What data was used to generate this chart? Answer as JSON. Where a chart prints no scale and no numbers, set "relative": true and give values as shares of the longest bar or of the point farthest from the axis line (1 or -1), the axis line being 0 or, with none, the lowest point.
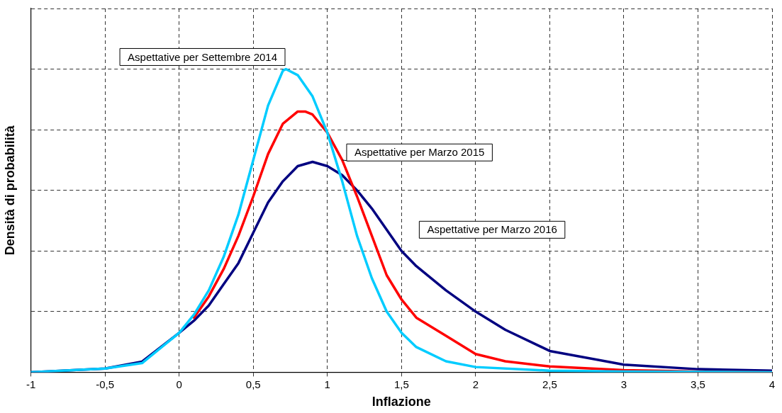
{
  "chart_data": {
    "type": "line",
    "xlabel": "Inflazione",
    "ylabel": "Densità di probabilità",
    "relative": true,
    "grid": true,
    "legend": false,
    "marker": "none",
    "line_style": "solid",
    "xlim": [
      -1,
      4
    ],
    "xticks": [
      -1,
      {
        "value": -0.5,
        "label": "-0,5"
      },
      0,
      {
        "value": 0.5,
        "label": "0,5"
      },
      1,
      {
        "value": 1.5,
        "label": "1,5"
      },
      2,
      {
        "value": 2.5,
        "label": "2,5"
      },
      3,
      {
        "value": 3.5,
        "label": "3,5"
      },
      4
    ],
    "series": [
      {
        "name": "Aspettative per Settembre 2014",
        "color": "#00ccff",
        "x": [
          -1,
          -0.5,
          -0.25,
          0,
          0.1,
          0.2,
          0.3,
          0.4,
          0.5,
          0.6,
          0.7,
          0.72,
          0.8,
          0.9,
          1.0,
          1.1,
          1.2,
          1.3,
          1.4,
          1.5,
          1.6,
          1.8,
          2.0,
          2.5,
          3,
          4
        ],
        "values": [
          0,
          0.012,
          0.03,
          0.13,
          0.19,
          0.27,
          0.38,
          0.52,
          0.7,
          0.88,
          0.995,
          1,
          0.98,
          0.91,
          0.79,
          0.63,
          0.45,
          0.31,
          0.2,
          0.13,
          0.083,
          0.036,
          0.017,
          0.005,
          0.002,
          0
        ]
      },
      {
        "name": "Aspettative per Marzo 2015",
        "color": "#ff0000",
        "x": [
          0.1,
          0.2,
          0.3,
          0.4,
          0.5,
          0.6,
          0.7,
          0.8,
          0.85,
          0.9,
          1.0,
          1.1,
          1.2,
          1.3,
          1.4,
          1.5,
          1.6,
          1.8,
          2.0,
          2.2,
          2.5,
          3,
          3.5,
          4
        ],
        "values": [
          0.18,
          0.25,
          0.34,
          0.45,
          0.58,
          0.72,
          0.82,
          0.86,
          0.86,
          0.85,
          0.79,
          0.7,
          0.58,
          0.45,
          0.32,
          0.24,
          0.18,
          0.12,
          0.06,
          0.036,
          0.019,
          0.007,
          0.002,
          0
        ]
      },
      {
        "name": "Aspettative per Marzo 2016",
        "color": "#000080",
        "x": [
          -1,
          -0.5,
          -0.25,
          0,
          0.1,
          0.2,
          0.3,
          0.4,
          0.5,
          0.6,
          0.7,
          0.8,
          0.9,
          1.0,
          1.1,
          1.2,
          1.3,
          1.4,
          1.5,
          1.6,
          1.8,
          2.0,
          2.2,
          2.5,
          3,
          3.5,
          4
        ],
        "values": [
          0,
          0.012,
          0.035,
          0.13,
          0.17,
          0.22,
          0.29,
          0.36,
          0.46,
          0.56,
          0.63,
          0.68,
          0.694,
          0.68,
          0.65,
          0.6,
          0.54,
          0.47,
          0.4,
          0.35,
          0.27,
          0.2,
          0.14,
          0.07,
          0.025,
          0.01,
          0.005
        ]
      }
    ]
  }
}
